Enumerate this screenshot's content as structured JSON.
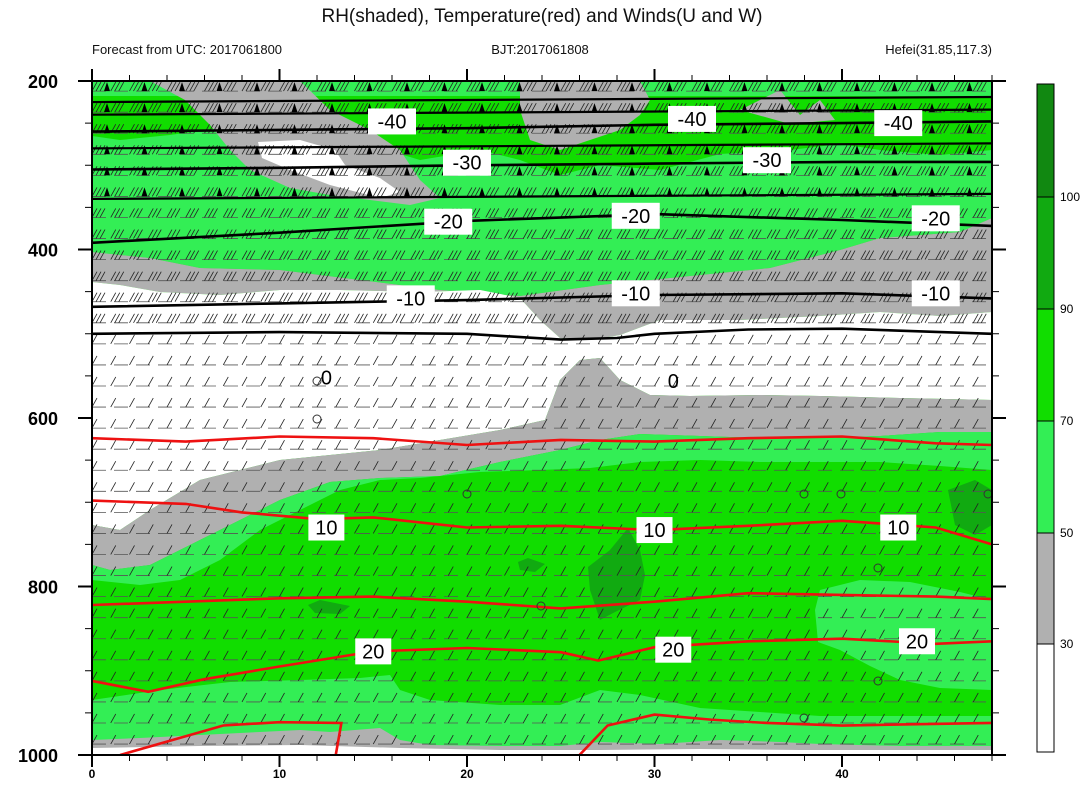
{
  "title": "RH(shaded), Temperature(red) and Winds(U and W)",
  "subtitle_left": "Forecast from UTC: 2017061800",
  "subtitle_center": "BJT:2017061808",
  "subtitle_right": "Hefei(31.85,117.3)",
  "colors": {
    "rh_below_30": "#ffffff",
    "rh_30_50": "#b0b0b0",
    "rh_50_70": "#33ee55",
    "rh_70_90": "#11dd00",
    "rh_90_100": "#11aa11",
    "rh_above_100": "#118811",
    "temperature_line": "#ee1111",
    "isotherm_black": "#000000"
  },
  "chart_data": {
    "type": "heatmap",
    "x_ticks": [
      0,
      10,
      20,
      30,
      40
    ],
    "xlim": [
      0,
      48
    ],
    "y_ticks": [
      200,
      400,
      600,
      800,
      1000
    ],
    "ylim": [
      200,
      1000
    ],
    "colorbar": {
      "levels": [
        30,
        50,
        70,
        90,
        100
      ],
      "labels": [
        "30",
        "50",
        "70",
        "90",
        "100"
      ]
    },
    "isotherm_labels": [
      {
        "text": "-40",
        "x": 16,
        "y": 248
      },
      {
        "text": "-40",
        "x": 32,
        "y": 245
      },
      {
        "text": "-40",
        "x": 43,
        "y": 250
      },
      {
        "text": "-30",
        "x": 20,
        "y": 297
      },
      {
        "text": "-30",
        "x": 36,
        "y": 294
      },
      {
        "text": "-20",
        "x": 19,
        "y": 367
      },
      {
        "text": "-20",
        "x": 29,
        "y": 360
      },
      {
        "text": "-20",
        "x": 45,
        "y": 363
      },
      {
        "text": "-10",
        "x": 17,
        "y": 458
      },
      {
        "text": "-10",
        "x": 29,
        "y": 452
      },
      {
        "text": "-10",
        "x": 45,
        "y": 452
      },
      {
        "text": "0",
        "x": 12.5,
        "y": 552
      },
      {
        "text": "0",
        "x": 31,
        "y": 556
      },
      {
        "text": "10",
        "x": 12.5,
        "y": 730
      },
      {
        "text": "10",
        "x": 30,
        "y": 733
      },
      {
        "text": "10",
        "x": 43,
        "y": 730
      },
      {
        "text": "20",
        "x": 15,
        "y": 877
      },
      {
        "text": "20",
        "x": 31,
        "y": 875
      },
      {
        "text": "20",
        "x": 44,
        "y": 865
      }
    ],
    "cold_isotherms": [
      {
        "level": -40,
        "x": [
          0,
          10,
          20,
          30,
          40,
          48
        ],
        "y": [
          260,
          258,
          256,
          252,
          250,
          248
        ]
      },
      {
        "level": -30,
        "x": [
          0,
          10,
          20,
          30,
          40,
          48
        ],
        "y": [
          305,
          303,
          300,
          298,
          296,
          296
        ]
      },
      {
        "level": -20,
        "x": [
          0,
          10,
          20,
          30,
          40,
          48
        ],
        "y": [
          392,
          380,
          366,
          358,
          365,
          372
        ]
      },
      {
        "level": -10,
        "x": [
          0,
          10,
          20,
          30,
          40,
          48
        ],
        "y": [
          468,
          464,
          460,
          454,
          452,
          458
        ]
      },
      {
        "level": 0,
        "x": [
          0,
          10,
          20,
          25,
          28,
          30,
          35,
          40,
          48
        ],
        "y": [
          500,
          498,
          500,
          507,
          505,
          500,
          495,
          494,
          500
        ]
      }
    ],
    "warm_isotherms": [
      {
        "level": 5,
        "x": [
          0,
          5,
          10,
          15,
          20,
          25,
          30,
          35,
          40,
          45,
          48
        ],
        "y": [
          624,
          628,
          622,
          624,
          632,
          626,
          628,
          624,
          622,
          630,
          632
        ]
      },
      {
        "level": 10,
        "x": [
          0,
          5,
          8,
          12,
          15,
          20,
          25,
          30,
          35,
          40,
          45,
          48
        ],
        "y": [
          698,
          702,
          712,
          720,
          718,
          730,
          728,
          733,
          728,
          722,
          730,
          750
        ]
      },
      {
        "level": 15,
        "x": [
          0,
          5,
          10,
          15,
          20,
          25,
          30,
          35,
          40,
          45,
          48
        ],
        "y": [
          822,
          818,
          814,
          812,
          818,
          826,
          818,
          808,
          810,
          812,
          815
        ]
      },
      {
        "level": 20,
        "x": [
          0,
          3,
          6,
          10,
          15,
          20,
          25,
          27,
          30,
          35,
          40,
          45,
          48
        ],
        "y": [
          912,
          925,
          910,
          895,
          877,
          873,
          878,
          888,
          872,
          865,
          862,
          868,
          865
        ]
      }
    ]
  }
}
